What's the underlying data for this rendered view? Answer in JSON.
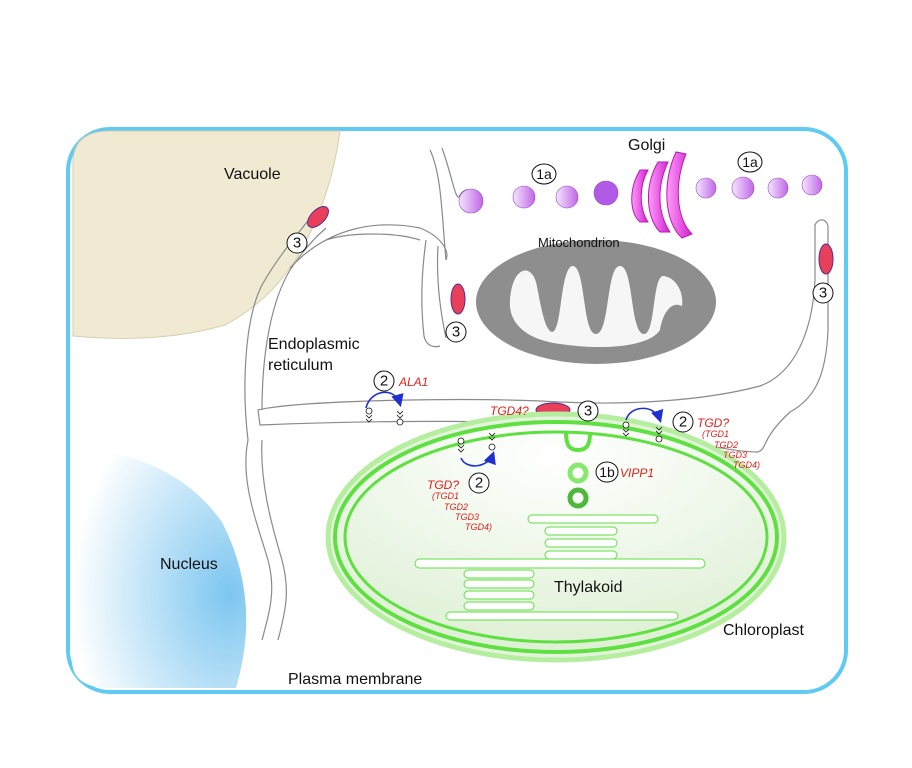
{
  "labels": {
    "vacuole": "Vacuole",
    "golgi": "Golgi",
    "mitochondrion": "Mitochondrion",
    "er_line1": "Endoplasmic",
    "er_line2": "reticulum",
    "nucleus": "Nucleus",
    "thylakoid": "Thylakoid",
    "chloroplast": "Chloroplast",
    "plasma_membrane": "Plasma membrane"
  },
  "markers": {
    "m1a": "1a",
    "m1b": "1b",
    "m2": "2",
    "m3": "3"
  },
  "proteins": {
    "ala1": "ALA1",
    "tgd4q": "TGD4?",
    "vipp1": "VIPP1",
    "tgdq": "TGD?",
    "tgd1": "(TGD1",
    "tgd2": "TGD2",
    "tgd3": "TGD3",
    "tgd4": "TGD4)"
  },
  "colors": {
    "plasma_membrane": "#56c8f0",
    "er_outline": "#8a8a8a",
    "vacuole": "#f1ead3",
    "nucleus": "#9fd4f2",
    "mitochondrion": "#8e8e8e",
    "golgi": "#e040e0",
    "vesicle": "#c060e8",
    "contact_protein": "#e8405a",
    "chloroplast_membrane": "#5ee040",
    "chloroplast_fill": "#e4f4dc",
    "arrow": "#2030d0",
    "protein_text": "#e0201b"
  }
}
